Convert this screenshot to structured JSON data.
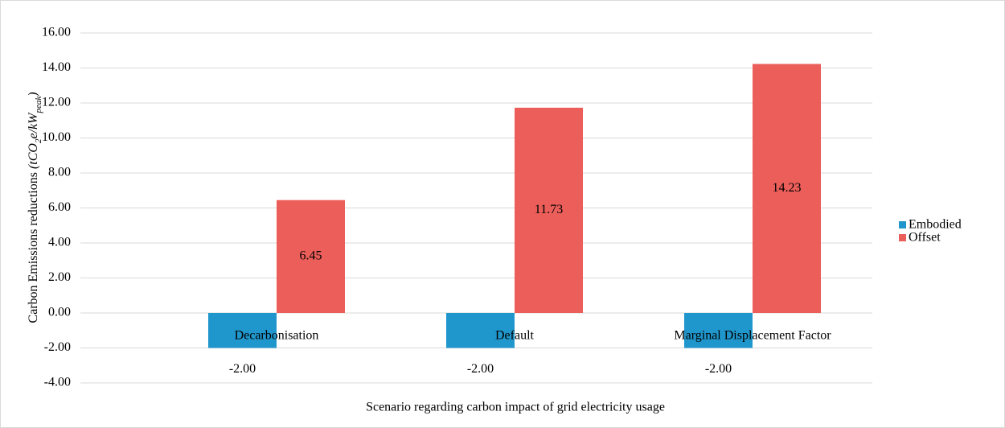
{
  "chart_data": {
    "type": "bar",
    "x_label": "Scenario regarding carbon impact of grid electricity usage",
    "y_label": [
      "Carbon Emissions reductions ",
      "(tCO",
      "2",
      "e/kW",
      "peak",
      ")"
    ],
    "categories": [
      "Decarbonisation",
      "Default",
      "Marginal Displacement Factor"
    ],
    "series": [
      {
        "name": "Embodied",
        "color": "#2097cc",
        "values": [
          -2,
          -2,
          -2
        ],
        "value_labels": [
          "-2.00",
          "-2.00",
          "-2.00"
        ]
      },
      {
        "name": "Offset",
        "color": "#ec5e5a",
        "values": [
          6.45,
          11.73,
          14.23
        ]
      }
    ],
    "ylim": [
      -4,
      16
    ],
    "yticks": [
      {
        "value": -4,
        "label": "-4.00"
      },
      {
        "value": -2,
        "label": "-2.00"
      },
      {
        "value": 0,
        "label": "0.00"
      },
      {
        "value": 2,
        "label": "2.00"
      },
      {
        "value": 4,
        "label": "4.00"
      },
      {
        "value": 6,
        "label": "6.00"
      },
      {
        "value": 8,
        "label": "8.00"
      },
      {
        "value": 10,
        "label": "10.00"
      },
      {
        "value": 12,
        "label": "12.00"
      },
      {
        "value": 14,
        "label": "14.00"
      },
      {
        "value": 16,
        "label": "16.00"
      }
    ],
    "grid": true,
    "legend": "right"
  }
}
